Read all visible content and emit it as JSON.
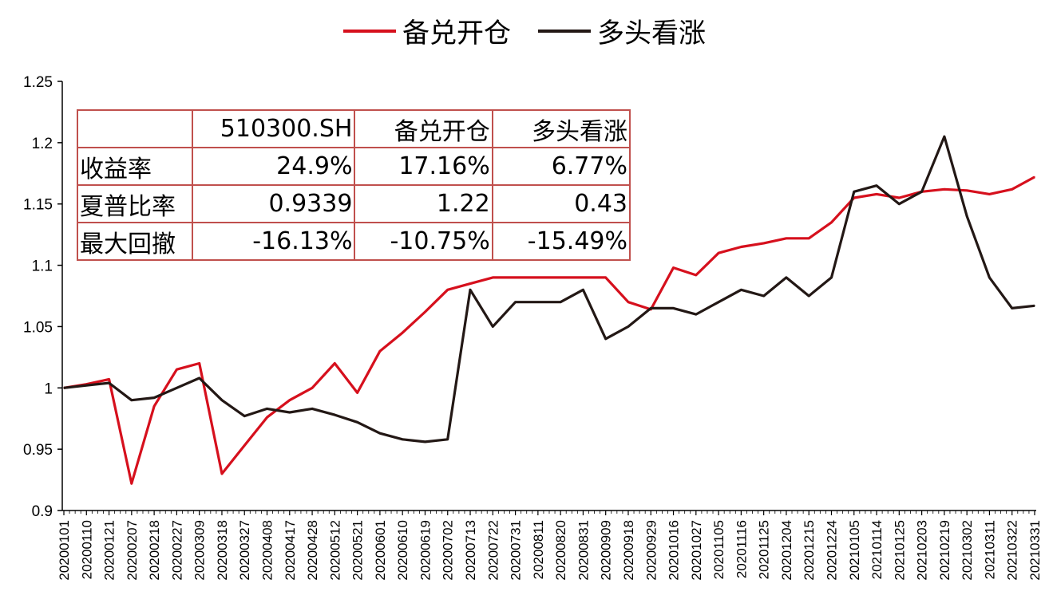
{
  "colors": {
    "series1": "#d6101d",
    "series2": "#231815",
    "table_border": "#c0504d"
  },
  "legend": [
    {
      "name": "备兑开仓",
      "color": "#d6101d"
    },
    {
      "name": "多头看涨",
      "color": "#231815"
    }
  ],
  "table": {
    "header": [
      "",
      "510300.SH",
      "备兑开仓",
      "多头看涨"
    ],
    "rows": [
      {
        "label": "收益率",
        "values": [
          "24.9%",
          "17.16%",
          "6.77%"
        ]
      },
      {
        "label": "夏普比率",
        "values": [
          "0.9339",
          "1.22",
          "0.43"
        ]
      },
      {
        "label": "最大回撤",
        "values": [
          "-16.13%",
          "-10.75%",
          "-15.49%"
        ]
      }
    ]
  },
  "chart_data": {
    "type": "line",
    "title": "",
    "xlabel": "",
    "ylabel": "",
    "ylim": [
      0.9,
      1.25
    ],
    "yticks": [
      0.9,
      0.95,
      1,
      1.05,
      1.1,
      1.15,
      1.2,
      1.25
    ],
    "ytick_labels": [
      "0.9",
      "0.95",
      "1",
      "1.05",
      "1.1",
      "1.15",
      "1.2",
      "1.25"
    ],
    "grid": false,
    "legend_position": "top",
    "x": [
      "20200101",
      "20200110",
      "20200121",
      "20200207",
      "20200218",
      "20200227",
      "20200309",
      "20200318",
      "20200327",
      "20200408",
      "20200417",
      "20200428",
      "20200512",
      "20200521",
      "20200601",
      "20200610",
      "20200619",
      "20200702",
      "20200713",
      "20200722",
      "20200731",
      "20200811",
      "20200820",
      "20200831",
      "20200909",
      "20200918",
      "20200929",
      "20201016",
      "20201027",
      "20201105",
      "20201116",
      "20201125",
      "20201204",
      "20201215",
      "20201224",
      "20210105",
      "20210114",
      "20210125",
      "20210203",
      "20210219",
      "20210302",
      "20210311",
      "20210322",
      "20210331"
    ],
    "series": [
      {
        "name": "备兑开仓",
        "color": "#d6101d",
        "values": [
          1.0,
          1.003,
          1.007,
          0.922,
          0.985,
          1.015,
          1.02,
          0.93,
          0.953,
          0.976,
          0.99,
          1.0,
          1.02,
          0.996,
          1.03,
          1.045,
          1.062,
          1.08,
          1.085,
          1.09,
          1.09,
          1.09,
          1.09,
          1.09,
          1.09,
          1.07,
          1.064,
          1.098,
          1.092,
          1.11,
          1.115,
          1.118,
          1.122,
          1.122,
          1.135,
          1.155,
          1.158,
          1.155,
          1.16,
          1.162,
          1.161,
          1.158,
          1.162,
          1.172
        ]
      },
      {
        "name": "多头看涨",
        "color": "#231815",
        "values": [
          1.0,
          1.002,
          1.004,
          0.99,
          0.992,
          1.0,
          1.008,
          0.99,
          0.977,
          0.983,
          0.98,
          0.983,
          0.978,
          0.972,
          0.963,
          0.958,
          0.956,
          0.958,
          1.08,
          1.05,
          1.07,
          1.07,
          1.07,
          1.08,
          1.04,
          1.05,
          1.065,
          1.065,
          1.06,
          1.07,
          1.08,
          1.075,
          1.09,
          1.075,
          1.09,
          1.16,
          1.165,
          1.15,
          1.16,
          1.205,
          1.14,
          1.09,
          1.065,
          1.067
        ]
      }
    ]
  }
}
